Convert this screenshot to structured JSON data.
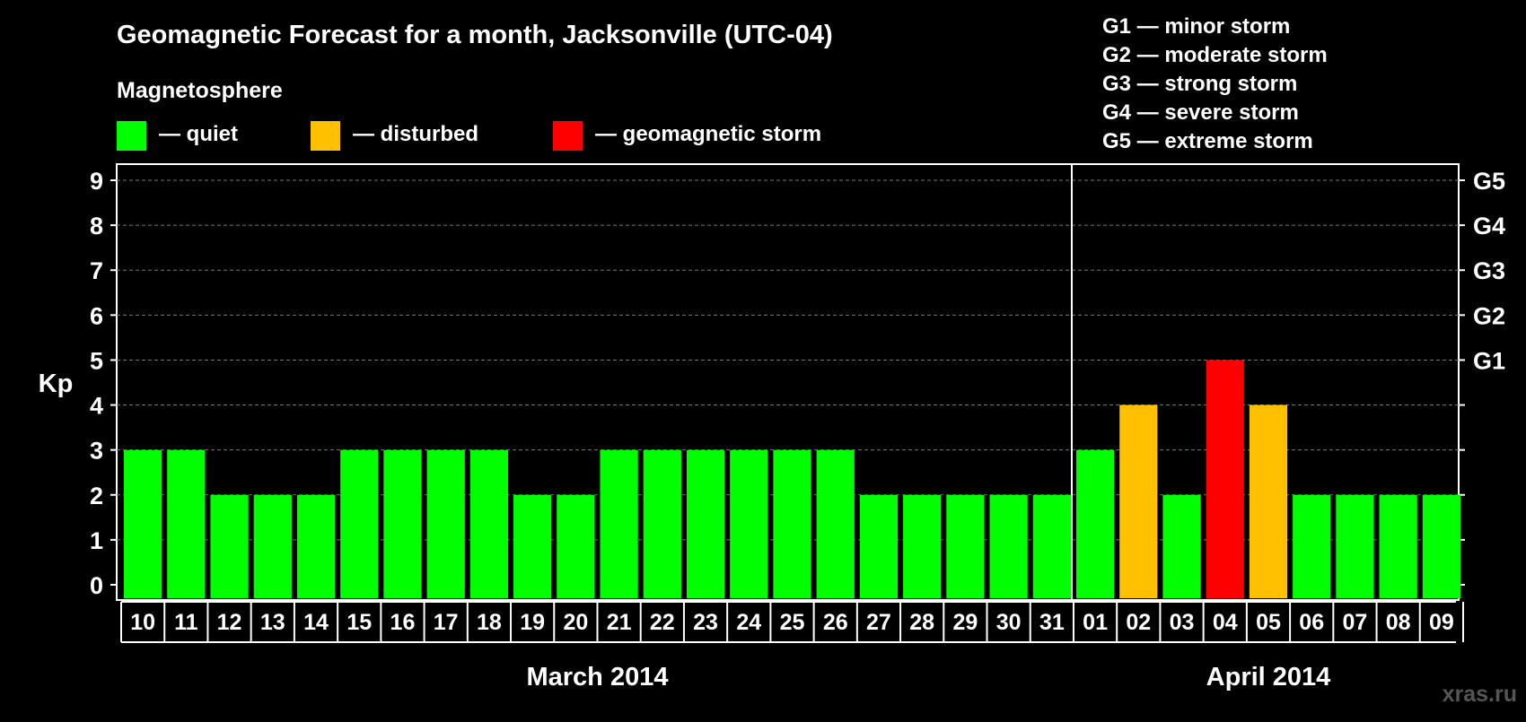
{
  "title": "Geomagnetic Forecast for a month, Jacksonville (UTC-04)",
  "legend": {
    "heading": "Magnetosphere",
    "items": [
      {
        "label": "— quiet",
        "color": "#00ff00"
      },
      {
        "label": "— disturbed",
        "color": "#ffc000"
      },
      {
        "label": "— geomagnetic storm",
        "color": "#ff0000"
      }
    ]
  },
  "storm_scale": [
    "G1 — minor storm",
    "G2 — moderate storm",
    "G3 — strong storm",
    "G4 — severe storm",
    "G5 — extreme storm"
  ],
  "watermark": "xras.ru",
  "chart_data": {
    "type": "bar",
    "ylabel": "Kp",
    "ylim": [
      0,
      9
    ],
    "y_ticks": [
      0,
      1,
      2,
      3,
      4,
      5,
      6,
      7,
      8,
      9
    ],
    "right_ticks": [
      {
        "value": 5,
        "label": "G1"
      },
      {
        "value": 6,
        "label": "G2"
      },
      {
        "value": 7,
        "label": "G3"
      },
      {
        "value": 8,
        "label": "G4"
      },
      {
        "value": 9,
        "label": "G5"
      }
    ],
    "grid": "dashed horizontal",
    "categories": [
      "10",
      "11",
      "12",
      "13",
      "14",
      "15",
      "16",
      "17",
      "18",
      "19",
      "20",
      "21",
      "22",
      "23",
      "24",
      "25",
      "26",
      "27",
      "28",
      "29",
      "30",
      "31",
      "01",
      "02",
      "03",
      "04",
      "05",
      "06",
      "07",
      "08",
      "09"
    ],
    "values": [
      3,
      3,
      2,
      2,
      2,
      3,
      3,
      3,
      3,
      2,
      2,
      3,
      3,
      3,
      3,
      3,
      3,
      2,
      2,
      2,
      2,
      2,
      3,
      4,
      2,
      5,
      4,
      2,
      2,
      2,
      2
    ],
    "levels": [
      "quiet",
      "quiet",
      "quiet",
      "quiet",
      "quiet",
      "quiet",
      "quiet",
      "quiet",
      "quiet",
      "quiet",
      "quiet",
      "quiet",
      "quiet",
      "quiet",
      "quiet",
      "quiet",
      "quiet",
      "quiet",
      "quiet",
      "quiet",
      "quiet",
      "quiet",
      "quiet",
      "disturbed",
      "quiet",
      "storm",
      "disturbed",
      "quiet",
      "quiet",
      "quiet",
      "quiet"
    ],
    "level_colors": {
      "quiet": "#00ff00",
      "disturbed": "#ffc000",
      "storm": "#ff0000"
    },
    "months": [
      {
        "label": "March 2014",
        "first": 0,
        "last": 21
      },
      {
        "label": "April 2014",
        "first": 22,
        "last": 30
      }
    ]
  }
}
